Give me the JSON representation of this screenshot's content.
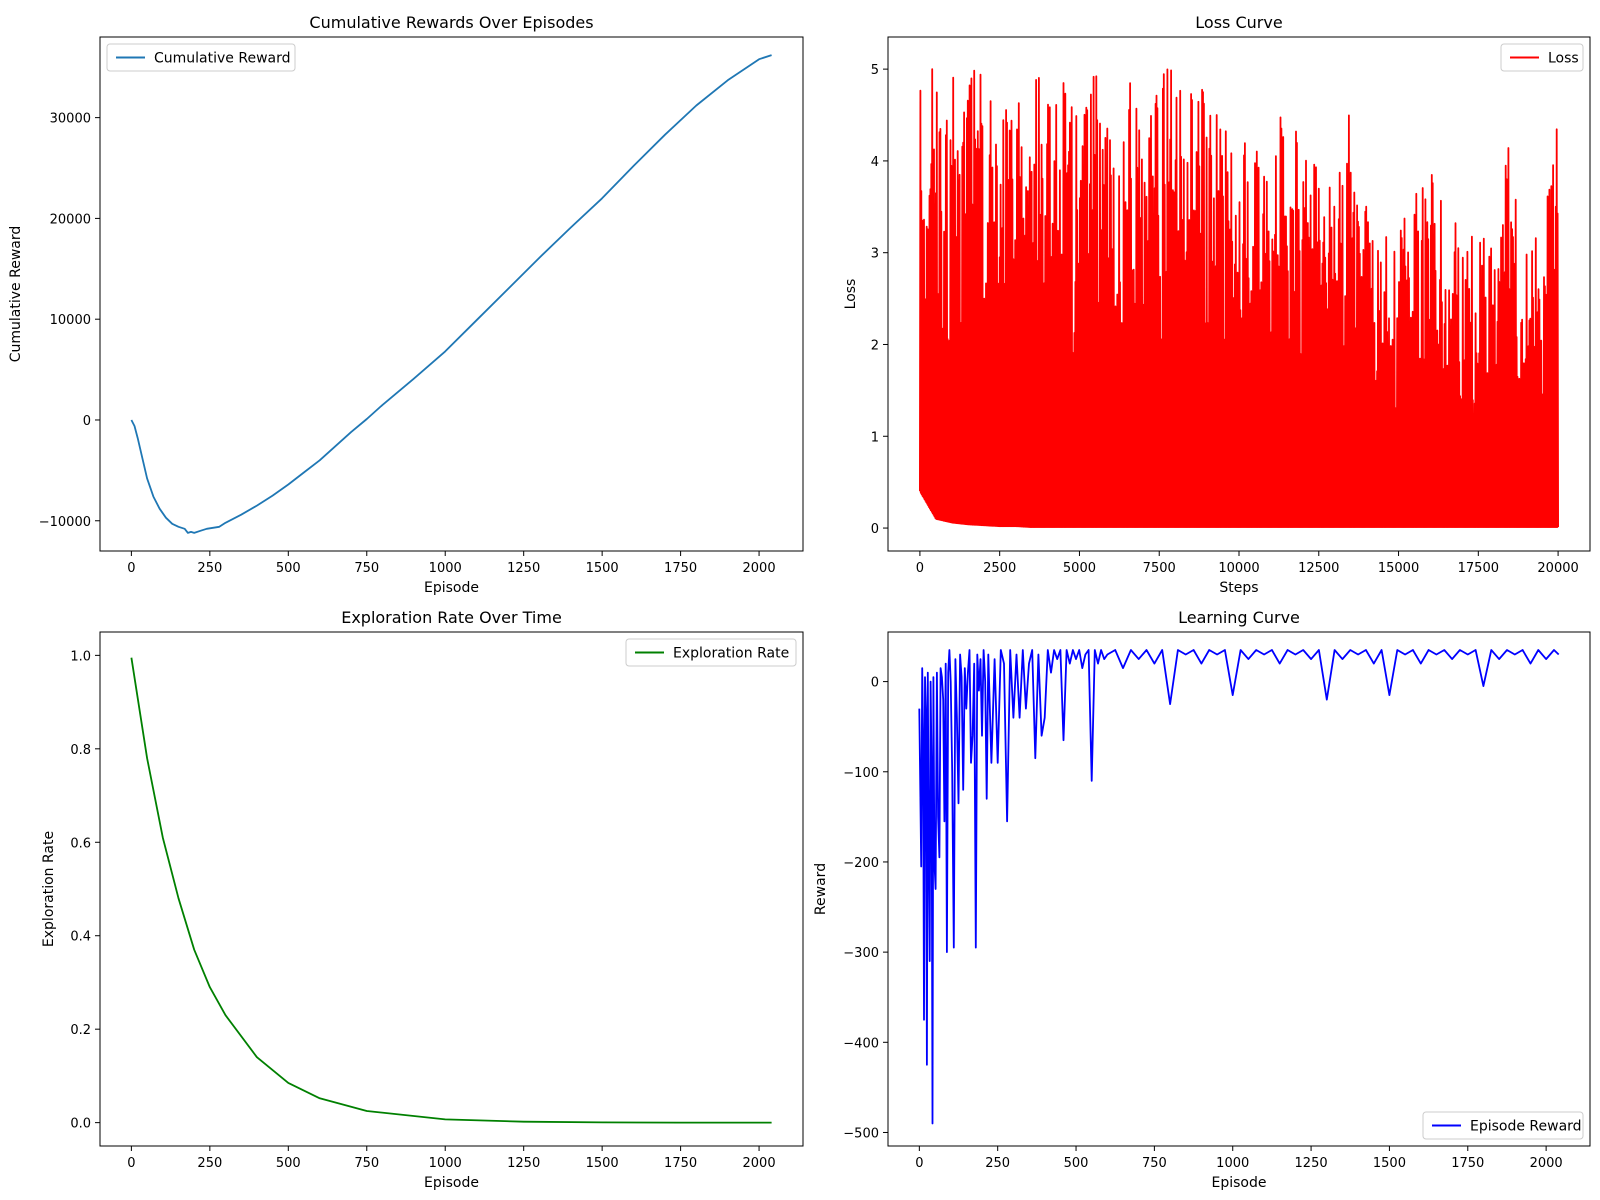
{
  "chart_data": [
    {
      "type": "line",
      "title": "Cumulative Rewards Over Episodes",
      "xlabel": "Episode",
      "ylabel": "Cumulative Reward",
      "xlim": [
        -100,
        2140
      ],
      "ylim": [
        -13000,
        38000
      ],
      "xticks": [
        0,
        250,
        500,
        750,
        1000,
        1250,
        1500,
        1750,
        2000
      ],
      "yticks": [
        -10000,
        0,
        10000,
        20000,
        30000
      ],
      "ytick_labels": [
        "−10000",
        "0",
        "10000",
        "20000",
        "30000"
      ],
      "legend_position": "upper-left",
      "grid": false,
      "series": [
        {
          "name": "Cumulative Reward",
          "color": "#1f77b4",
          "x": [
            0,
            10,
            20,
            35,
            50,
            70,
            90,
            110,
            130,
            150,
            170,
            180,
            190,
            200,
            220,
            240,
            260,
            280,
            300,
            350,
            400,
            450,
            500,
            550,
            600,
            650,
            700,
            750,
            800,
            900,
            1000,
            1100,
            1200,
            1300,
            1400,
            1500,
            1600,
            1700,
            1800,
            1900,
            2000,
            2040
          ],
          "y": [
            0,
            -600,
            -1800,
            -3800,
            -5800,
            -7600,
            -8800,
            -9700,
            -10300,
            -10600,
            -10800,
            -11200,
            -11100,
            -11200,
            -11000,
            -10800,
            -10700,
            -10600,
            -10200,
            -9400,
            -8500,
            -7500,
            -6400,
            -5200,
            -4000,
            -2600,
            -1200,
            100,
            1500,
            4100,
            6800,
            9900,
            13000,
            16100,
            19100,
            22000,
            25200,
            28300,
            31200,
            33700,
            35800,
            36200
          ]
        }
      ]
    },
    {
      "type": "line",
      "title": "Loss Curve",
      "xlabel": "Steps",
      "ylabel": "Loss",
      "xlim": [
        -1000,
        21000
      ],
      "ylim": [
        -0.25,
        5.35
      ],
      "xticks": [
        0,
        2500,
        5000,
        7500,
        10000,
        12500,
        15000,
        17500,
        20000
      ],
      "yticks": [
        0,
        1,
        2,
        3,
        4,
        5
      ],
      "legend_position": "upper-right",
      "grid": false,
      "series": [
        {
          "name": "Loss",
          "color": "#ff0000",
          "range": [
            0,
            20000
          ],
          "band": [
            0,
            1
          ],
          "peaks_x": [
            0,
            500,
            1000,
            1500,
            2000,
            2500,
            3000,
            3500,
            4000,
            4500,
            5000,
            5500,
            6000,
            6500,
            7000,
            7500,
            8000,
            8500,
            9000,
            9500,
            10000,
            10500,
            11000,
            11500,
            12000,
            12500,
            13000,
            13500,
            14000,
            14500,
            15000,
            15500,
            16000,
            16500,
            17000,
            17500,
            18000,
            18500,
            19000,
            19500,
            20000
          ],
          "peaks_y": [
            5.0,
            5.0,
            5.0,
            5.0,
            5.0,
            5.0,
            5.0,
            5.0,
            5.0,
            5.0,
            5.0,
            5.0,
            5.0,
            5.0,
            5.0,
            5.0,
            5.0,
            5.0,
            4.8,
            4.5,
            4.4,
            4.2,
            4.1,
            4.8,
            4.2,
            3.9,
            3.7,
            4.6,
            3.5,
            3.3,
            3.2,
            3.8,
            3.9,
            3.4,
            3.3,
            3.2,
            3.1,
            4.3,
            3.0,
            3.3,
            4.5
          ],
          "troughs_y": [
            0.4,
            0.1,
            0.06,
            0.04,
            0.03,
            0.02,
            0.02,
            0.01,
            0.01,
            0.01,
            0.01,
            0.01,
            0.01,
            0.01,
            0.01,
            0.01,
            0.01,
            0.01,
            0.01,
            0.01,
            0.01,
            0.01,
            0.01,
            0.01,
            0.01,
            0.01,
            0.01,
            0.01,
            0.01,
            0.01,
            0.01,
            0.01,
            0.01,
            0.01,
            0.01,
            0.01,
            0.01,
            0.01,
            0.01,
            0.01,
            0.01
          ]
        }
      ]
    },
    {
      "type": "line",
      "title": "Exploration Rate Over Time",
      "xlabel": "Episode",
      "ylabel": "Exploration Rate",
      "xlim": [
        -100,
        2140
      ],
      "ylim": [
        -0.05,
        1.05
      ],
      "xticks": [
        0,
        250,
        500,
        750,
        1000,
        1250,
        1500,
        1750,
        2000
      ],
      "yticks": [
        0.0,
        0.2,
        0.4,
        0.6,
        0.8,
        1.0
      ],
      "ytick_labels": [
        "0.0",
        "0.2",
        "0.4",
        "0.6",
        "0.8",
        "1.0"
      ],
      "legend_position": "upper-right",
      "grid": false,
      "series": [
        {
          "name": "Exploration Rate",
          "color": "#008000",
          "x": [
            0,
            50,
            100,
            150,
            200,
            250,
            300,
            400,
            500,
            600,
            750,
            1000,
            1250,
            1500,
            1750,
            2040
          ],
          "y": [
            0.995,
            0.78,
            0.61,
            0.48,
            0.37,
            0.29,
            0.23,
            0.14,
            0.085,
            0.052,
            0.025,
            0.007,
            0.002,
            0.0005,
            0.0001,
            0.0
          ]
        }
      ]
    },
    {
      "type": "line",
      "title": "Learning Curve",
      "xlabel": "Episode",
      "ylabel": "Reward",
      "xlim": [
        -100,
        2140
      ],
      "ylim": [
        -515,
        55
      ],
      "xticks": [
        0,
        250,
        500,
        750,
        1000,
        1250,
        1500,
        1750,
        2000
      ],
      "yticks": [
        -500,
        -400,
        -300,
        -200,
        -100,
        0
      ],
      "ytick_labels": [
        "−500",
        "−400",
        "−300",
        "−200",
        "−100",
        "0"
      ],
      "legend_position": "lower-right",
      "grid": false,
      "series": [
        {
          "name": "Episode Reward",
          "color": "#0000ff",
          "x": [
            0,
            3,
            6,
            9,
            12,
            15,
            18,
            21,
            24,
            27,
            30,
            33,
            36,
            39,
            42,
            45,
            48,
            52,
            56,
            60,
            64,
            68,
            72,
            76,
            80,
            84,
            88,
            92,
            96,
            100,
            105,
            110,
            115,
            120,
            125,
            130,
            135,
            140,
            145,
            150,
            155,
            160,
            165,
            170,
            175,
            180,
            185,
            190,
            195,
            200,
            205,
            210,
            215,
            220,
            230,
            240,
            250,
            260,
            270,
            280,
            290,
            300,
            310,
            320,
            330,
            340,
            350,
            360,
            370,
            380,
            390,
            400,
            410,
            420,
            430,
            440,
            450,
            460,
            470,
            480,
            490,
            500,
            510,
            520,
            530,
            540,
            550,
            560,
            570,
            580,
            590,
            600,
            625,
            650,
            675,
            700,
            725,
            750,
            775,
            800,
            825,
            850,
            875,
            900,
            925,
            950,
            975,
            1000,
            1025,
            1050,
            1075,
            1100,
            1125,
            1150,
            1175,
            1200,
            1225,
            1250,
            1275,
            1300,
            1325,
            1350,
            1375,
            1400,
            1425,
            1450,
            1475,
            1500,
            1525,
            1550,
            1575,
            1600,
            1625,
            1650,
            1675,
            1700,
            1725,
            1750,
            1775,
            1800,
            1825,
            1850,
            1875,
            1900,
            1925,
            1950,
            1975,
            2000,
            2025,
            2040
          ],
          "y": [
            -30,
            -120,
            -205,
            15,
            -60,
            -375,
            5,
            -30,
            -425,
            10,
            -175,
            -310,
            0,
            -100,
            -490,
            5,
            -200,
            -230,
            10,
            -150,
            -195,
            15,
            5,
            -20,
            -155,
            20,
            -300,
            10,
            35,
            0,
            -100,
            -295,
            25,
            -40,
            -135,
            30,
            5,
            -120,
            15,
            -30,
            10,
            35,
            -90,
            -60,
            20,
            -295,
            30,
            -10,
            25,
            -60,
            35,
            0,
            -130,
            30,
            -90,
            25,
            -90,
            35,
            20,
            -155,
            35,
            -40,
            30,
            -40,
            35,
            -30,
            20,
            35,
            -85,
            30,
            -60,
            -40,
            35,
            10,
            35,
            25,
            35,
            -65,
            35,
            20,
            35,
            25,
            35,
            15,
            30,
            35,
            -110,
            35,
            20,
            35,
            25,
            30,
            35,
            15,
            35,
            25,
            35,
            20,
            35,
            -25,
            35,
            30,
            35,
            20,
            35,
            30,
            35,
            -15,
            35,
            25,
            35,
            30,
            35,
            20,
            35,
            30,
            35,
            25,
            35,
            -20,
            35,
            25,
            35,
            30,
            35,
            20,
            35,
            -15,
            35,
            30,
            35,
            20,
            35,
            30,
            35,
            25,
            35,
            30,
            35,
            -5,
            35,
            25,
            35,
            30,
            35,
            20,
            35,
            25,
            35,
            30
          ]
        }
      ]
    }
  ]
}
